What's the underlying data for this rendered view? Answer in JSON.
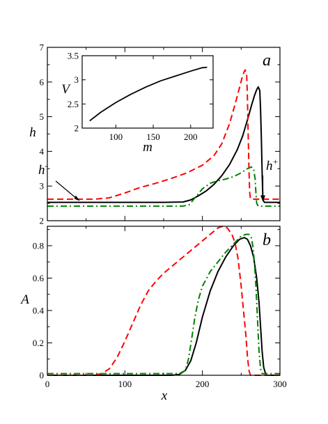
{
  "chart_data": [
    {
      "panel_label": "a",
      "type": "line",
      "xlabel": "",
      "ylabel": "h",
      "xlim": [
        0,
        300
      ],
      "ylim": [
        2,
        7
      ],
      "xticks": [
        0,
        100,
        200,
        300
      ],
      "yticks": [
        2,
        3,
        4,
        5,
        6,
        7
      ],
      "series": [
        {
          "color": "#000000",
          "style": "solid",
          "x": [
            0,
            150,
            175,
            185,
            195,
            205,
            215,
            225,
            235,
            245,
            252,
            258,
            263,
            267,
            270,
            272,
            274,
            275,
            276,
            277,
            278,
            280,
            285,
            300
          ],
          "y": [
            2.53,
            2.53,
            2.54,
            2.6,
            2.72,
            2.86,
            3.05,
            3.3,
            3.62,
            4.05,
            4.45,
            4.9,
            5.3,
            5.6,
            5.78,
            5.86,
            5.75,
            5.2,
            4.4,
            3.4,
            2.6,
            2.53,
            2.53,
            2.53
          ]
        },
        {
          "color": "#ff0000",
          "style": "dashed",
          "x": [
            0,
            60,
            80,
            100,
            120,
            140,
            160,
            180,
            200,
            215,
            225,
            235,
            242,
            248,
            252,
            255,
            257,
            258,
            259,
            260,
            261,
            262,
            264,
            300
          ],
          "y": [
            2.62,
            2.62,
            2.66,
            2.8,
            2.96,
            3.08,
            3.22,
            3.38,
            3.6,
            3.88,
            4.22,
            4.8,
            5.35,
            5.85,
            6.2,
            6.35,
            6.25,
            5.6,
            4.5,
            3.5,
            2.8,
            2.63,
            2.62,
            2.62
          ]
        },
        {
          "color": "#008000",
          "style": "dashdot",
          "x": [
            0,
            175,
            183,
            190,
            200,
            210,
            220,
            230,
            240,
            250,
            258,
            263,
            266,
            268,
            269,
            270,
            272,
            275,
            300
          ],
          "y": [
            2.42,
            2.42,
            2.46,
            2.65,
            2.92,
            3.08,
            3.15,
            3.2,
            3.27,
            3.38,
            3.5,
            3.55,
            3.5,
            3.2,
            2.8,
            2.5,
            2.42,
            2.42,
            2.42
          ]
        }
      ],
      "annotations": [
        {
          "text": "h",
          "sup": "-",
          "x": 42,
          "y": 2.53
        },
        {
          "text": "h",
          "sup": "+",
          "x": 278,
          "y": 2.53
        }
      ],
      "inset": {
        "type": "line",
        "xlabel": "m",
        "ylabel": "V",
        "xlim": [
          55,
          230
        ],
        "ylim": [
          2,
          3.5
        ],
        "xticks": [
          100,
          150,
          200
        ],
        "yticks": [
          2,
          2.5,
          3,
          3.5
        ],
        "ytick_labels": [
          "2",
          "2.5",
          "3",
          "3.5"
        ],
        "series": [
          {
            "color": "#000000",
            "style": "solid",
            "x": [
              65,
              80,
              100,
              120,
              140,
              160,
              180,
              200,
              215,
              222
            ],
            "y": [
              2.15,
              2.33,
              2.53,
              2.7,
              2.85,
              2.98,
              3.08,
              3.18,
              3.25,
              3.26
            ]
          }
        ]
      }
    },
    {
      "panel_label": "b",
      "type": "line",
      "xlabel": "x",
      "ylabel": "A",
      "xlim": [
        0,
        300
      ],
      "ylim": [
        0,
        0.92
      ],
      "xticks": [
        0,
        100,
        200,
        300
      ],
      "yticks": [
        0,
        0.2,
        0.4,
        0.6,
        0.8
      ],
      "ytick_labels": [
        "0",
        "0.2",
        "0.4",
        "0.6",
        "0.8"
      ],
      "series": [
        {
          "color": "#000000",
          "style": "solid",
          "x": [
            0,
            160,
            170,
            178,
            185,
            192,
            200,
            210,
            220,
            230,
            240,
            248,
            254,
            258,
            262,
            266,
            270,
            273,
            275,
            277,
            279,
            282,
            300
          ],
          "y": [
            0,
            0,
            0.005,
            0.03,
            0.09,
            0.2,
            0.36,
            0.52,
            0.64,
            0.73,
            0.8,
            0.84,
            0.85,
            0.84,
            0.8,
            0.73,
            0.6,
            0.45,
            0.3,
            0.15,
            0.05,
            0,
            0
          ]
        },
        {
          "color": "#ff0000",
          "style": "dashed",
          "x": [
            0,
            60,
            70,
            80,
            90,
            100,
            110,
            120,
            130,
            140,
            150,
            160,
            170,
            180,
            190,
            200,
            210,
            220,
            226,
            232,
            238,
            242,
            246,
            250,
            253,
            256,
            258,
            260,
            262,
            300
          ],
          "y": [
            0,
            0,
            0.01,
            0.04,
            0.11,
            0.21,
            0.32,
            0.43,
            0.52,
            0.58,
            0.63,
            0.67,
            0.71,
            0.75,
            0.79,
            0.83,
            0.87,
            0.91,
            0.92,
            0.91,
            0.87,
            0.82,
            0.72,
            0.55,
            0.4,
            0.25,
            0.12,
            0.03,
            0,
            0
          ]
        },
        {
          "color": "#008000",
          "style": "dashdot",
          "x": [
            0,
            170,
            178,
            182,
            186,
            190,
            195,
            200,
            210,
            220,
            230,
            240,
            250,
            256,
            260,
            263,
            265,
            267,
            269,
            271,
            273,
            275,
            277,
            300
          ],
          "y": [
            0.01,
            0.01,
            0.03,
            0.1,
            0.22,
            0.35,
            0.47,
            0.55,
            0.64,
            0.7,
            0.76,
            0.81,
            0.86,
            0.87,
            0.87,
            0.85,
            0.8,
            0.7,
            0.55,
            0.35,
            0.15,
            0.04,
            0.01,
            0.01
          ]
        }
      ]
    }
  ]
}
